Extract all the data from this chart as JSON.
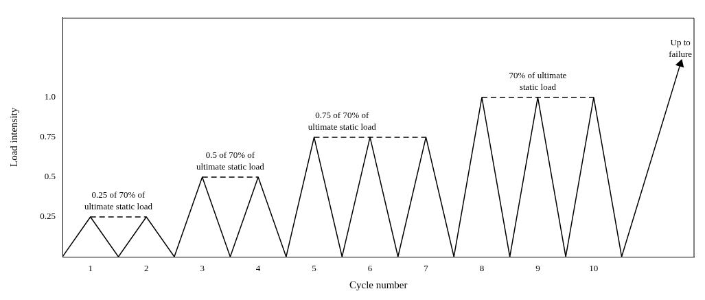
{
  "chart_data": {
    "type": "line",
    "xlabel": "Cycle number",
    "ylabel": "Load intensity",
    "xlim": [
      0.5,
      11.8
    ],
    "xticks": [
      1,
      2,
      3,
      4,
      5,
      6,
      7,
      8,
      9,
      10
    ],
    "ylim": [
      0,
      1.5
    ],
    "yticks": [
      0.25,
      0.5,
      {
        "value": 1,
        "label": "1.0"
      },
      0.75
    ],
    "grid": false,
    "legend": false,
    "marker": "none",
    "line_style": "solid",
    "series": [
      {
        "color": "#000000",
        "x": [
          0.5,
          1,
          1.5,
          2,
          2.5,
          3,
          3.5,
          4,
          4.5,
          5,
          5.5,
          6,
          6.5,
          7,
          7.5,
          8,
          8.5,
          9,
          9.5,
          10,
          10.5,
          11.55
        ],
        "values": [
          0,
          0.25,
          0,
          0.25,
          0,
          0.5,
          0,
          0.5,
          0,
          0.75,
          0,
          0.75,
          0,
          0.75,
          0,
          1,
          0,
          1,
          0,
          1,
          0,
          1.21
        ]
      },
      {
        "color": "#000000",
        "line_style": "dashed",
        "x": [
          1,
          2
        ],
        "values": [
          0.25,
          0.25
        ]
      },
      {
        "color": "#000000",
        "line_style": "dashed",
        "x": [
          3,
          4
        ],
        "values": [
          0.5,
          0.5
        ]
      },
      {
        "color": "#000000",
        "line_style": "dashed",
        "x": [
          5,
          7
        ],
        "values": [
          0.75,
          0.75
        ]
      },
      {
        "color": "#000000",
        "line_style": "dashed",
        "x": [
          8,
          10
        ],
        "values": [
          1,
          1
        ]
      }
    ],
    "annotations": [
      {
        "text": "0.25 of 70% of\nultimate static load",
        "x": 1.5,
        "y": 0.25
      },
      {
        "text": "0.5 of 70% of\nultimate static load",
        "x": 3.5,
        "y": 0.5
      },
      {
        "text": "0.75 of 70% of\nultimate static load",
        "x": 5.5,
        "y": 0.75
      },
      {
        "text": "70% of ultimate\nstatic load",
        "x": 9,
        "y": 1
      },
      {
        "text": "Up to\nfailure",
        "x": 11.55,
        "y": 1.21
      }
    ]
  }
}
